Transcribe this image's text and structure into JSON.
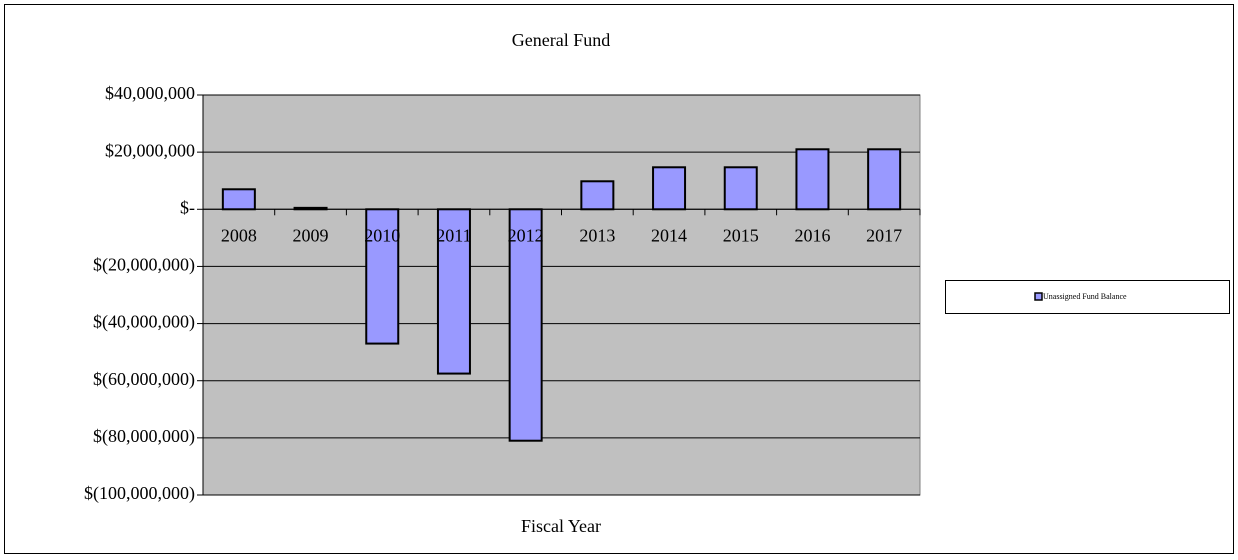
{
  "chart_data": {
    "type": "bar",
    "title": "General Fund",
    "x_label": "Fiscal Year",
    "categories": [
      "2008",
      "2009",
      "2010",
      "2011",
      "2012",
      "2013",
      "2014",
      "2015",
      "2016",
      "2017"
    ],
    "series": [
      {
        "name": "Unassigned Fund Balance",
        "color": "#9999ff",
        "values": [
          7000000,
          500000,
          -47000000,
          -57500000,
          -81000000,
          9800000,
          14700000,
          14700000,
          21000000,
          21000000
        ]
      }
    ],
    "ylim": [
      -100000000,
      40000000
    ],
    "yticks": [
      {
        "value": -100000000,
        "label": "$(100,000,000)"
      },
      {
        "value": -80000000,
        "label": "$(80,000,000)"
      },
      {
        "value": -60000000,
        "label": "$(60,000,000)"
      },
      {
        "value": -40000000,
        "label": "$(40,000,000)"
      },
      {
        "value": -20000000,
        "label": "$(20,000,000)"
      },
      {
        "value": 0,
        "label": "$-"
      },
      {
        "value": 20000000,
        "label": "$20,000,000"
      },
      {
        "value": 40000000,
        "label": "$40,000,000"
      }
    ],
    "grid": true,
    "legend": "right",
    "plot_background": "#c0c0c0"
  }
}
